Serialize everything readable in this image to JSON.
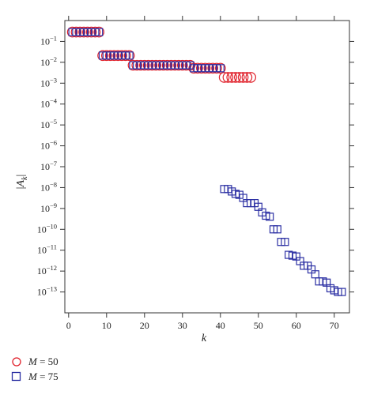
{
  "chart_data": {
    "type": "scatter",
    "xlabel": "k",
    "ylabel": "|A_k|",
    "xlim": [
      -1,
      74
    ],
    "ylim_log10": [
      -14,
      0
    ],
    "x_ticks": [
      0,
      10,
      20,
      30,
      40,
      50,
      60,
      70
    ],
    "y_ticks_exp": [
      -1,
      -2,
      -3,
      -4,
      -5,
      -6,
      -7,
      -8,
      -9,
      -10,
      -11,
      -12,
      -13
    ],
    "y_tick_base": "10",
    "y_scale": "log",
    "grid": false,
    "legend_position": "below-left",
    "series": [
      {
        "name": "M = 50",
        "marker": "circle",
        "color": "#e0202a",
        "x": [
          1,
          2,
          3,
          4,
          5,
          6,
          7,
          8,
          9,
          10,
          11,
          12,
          13,
          14,
          15,
          16,
          17,
          18,
          19,
          20,
          21,
          22,
          23,
          24,
          25,
          26,
          27,
          28,
          29,
          30,
          31,
          32,
          33,
          34,
          35,
          36,
          37,
          38,
          39,
          40,
          41,
          42,
          43,
          44,
          45,
          46,
          47,
          48
        ],
        "y": [
          0.28,
          0.28,
          0.28,
          0.28,
          0.28,
          0.28,
          0.28,
          0.28,
          0.021,
          0.021,
          0.021,
          0.021,
          0.021,
          0.021,
          0.021,
          0.021,
          0.0072,
          0.0072,
          0.0072,
          0.0072,
          0.0072,
          0.0072,
          0.0072,
          0.0072,
          0.0072,
          0.0072,
          0.0072,
          0.0072,
          0.0072,
          0.0072,
          0.0072,
          0.0072,
          0.0052,
          0.0052,
          0.0052,
          0.0052,
          0.0052,
          0.0052,
          0.0052,
          0.0052,
          0.0019,
          0.0019,
          0.0019,
          0.0019,
          0.0019,
          0.0019,
          0.0019,
          0.0019
        ]
      },
      {
        "name": "M = 75",
        "marker": "square",
        "color": "#2b2fa3",
        "x": [
          1,
          2,
          3,
          4,
          5,
          6,
          7,
          8,
          9,
          10,
          11,
          12,
          13,
          14,
          15,
          16,
          17,
          18,
          19,
          20,
          21,
          22,
          23,
          24,
          25,
          26,
          27,
          28,
          29,
          30,
          31,
          32,
          33,
          34,
          35,
          36,
          37,
          38,
          39,
          40,
          41,
          42,
          43,
          44,
          45,
          46,
          47,
          48,
          49,
          50,
          51,
          52,
          53,
          54,
          55,
          56,
          57,
          58,
          59,
          60,
          61,
          62,
          63,
          64,
          65,
          66,
          67,
          68,
          69,
          70,
          71,
          72
        ],
        "y": [
          0.28,
          0.28,
          0.28,
          0.28,
          0.28,
          0.28,
          0.28,
          0.28,
          0.021,
          0.021,
          0.021,
          0.021,
          0.021,
          0.021,
          0.021,
          0.021,
          0.0072,
          0.0072,
          0.0072,
          0.0072,
          0.0072,
          0.0072,
          0.0072,
          0.0072,
          0.0072,
          0.0072,
          0.0072,
          0.0072,
          0.0072,
          0.0072,
          0.0072,
          0.0072,
          0.0052,
          0.0052,
          0.0052,
          0.0052,
          0.0052,
          0.0052,
          0.0052,
          0.0052,
          8.5e-09,
          8.5e-09,
          6.5e-09,
          5e-09,
          4.5e-09,
          3.2e-09,
          1.8e-09,
          1.8e-09,
          1.8e-09,
          1.2e-09,
          6.5e-10,
          4.5e-10,
          4e-10,
          1e-10,
          1e-10,
          2.5e-11,
          2.5e-11,
          6e-12,
          5.5e-12,
          5e-12,
          3e-12,
          1.8e-12,
          1.8e-12,
          1.2e-12,
          7e-13,
          3.2e-13,
          3.2e-13,
          2.8e-13,
          1.5e-13,
          1.2e-13,
          1e-13,
          1e-13
        ]
      }
    ]
  }
}
